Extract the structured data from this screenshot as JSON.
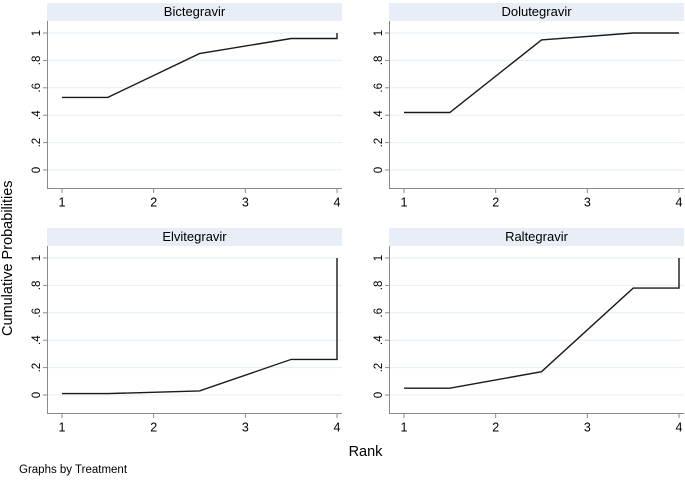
{
  "figure": {
    "y_axis_label": "Cumulative Probabilities",
    "x_axis_label": "Rank",
    "note": "Graphs by Treatment"
  },
  "style": {
    "title_band_color": "#e8eef5",
    "grid_color": "#e2eef6",
    "axis_color": "#8a8a8a",
    "line_color": "#1a1a1a",
    "text_color": "#000000"
  },
  "chart_data": {
    "type": "line",
    "layout": "2x2 small multiples (graphs by Treatment)",
    "x_axis": {
      "label": "Rank",
      "range": [
        1,
        4
      ],
      "tick_values": [
        1,
        2,
        3,
        4
      ],
      "tick_labels": [
        "1",
        "2",
        "3",
        "4"
      ]
    },
    "y_axis": {
      "label": "Cumulative Probabilities",
      "range": [
        0,
        1
      ],
      "tick_values": [
        0,
        0.2,
        0.4,
        0.6,
        0.8,
        1
      ],
      "tick_labels": [
        "0",
        ".2",
        ".4",
        ".6",
        ".8",
        "1"
      ],
      "grid": true
    },
    "panels": [
      {
        "title": "Bictegravir",
        "cumulative_probability_by_rank": {
          "rank1": 0.53,
          "rank2": 0.85,
          "rank3": 0.96,
          "rank4": 1.0
        },
        "line_vertices": [
          [
            1,
            0.53
          ],
          [
            1.5,
            0.53
          ],
          [
            2.5,
            0.85
          ],
          [
            3.5,
            0.96
          ],
          [
            4,
            0.96
          ],
          [
            4,
            1.0
          ]
        ]
      },
      {
        "title": "Dolutegravir",
        "cumulative_probability_by_rank": {
          "rank1": 0.42,
          "rank2": 0.95,
          "rank3": 1.0,
          "rank4": 1.0
        },
        "line_vertices": [
          [
            1,
            0.42
          ],
          [
            1.5,
            0.42
          ],
          [
            2.5,
            0.95
          ],
          [
            3.5,
            1.0
          ],
          [
            4,
            1.0
          ]
        ]
      },
      {
        "title": "Elvitegravir",
        "cumulative_probability_by_rank": {
          "rank1": 0.01,
          "rank2": 0.03,
          "rank3": 0.26,
          "rank4": 1.0
        },
        "line_vertices": [
          [
            1,
            0.01
          ],
          [
            1.5,
            0.01
          ],
          [
            2.5,
            0.03
          ],
          [
            3.5,
            0.26
          ],
          [
            4,
            0.26
          ],
          [
            4,
            1.0
          ]
        ]
      },
      {
        "title": "Raltegravir",
        "cumulative_probability_by_rank": {
          "rank1": 0.05,
          "rank2": 0.17,
          "rank3": 0.78,
          "rank4": 1.0
        },
        "line_vertices": [
          [
            1,
            0.05
          ],
          [
            1.5,
            0.05
          ],
          [
            2.5,
            0.17
          ],
          [
            3.5,
            0.78
          ],
          [
            4,
            0.78
          ],
          [
            4,
            1.0
          ]
        ]
      }
    ]
  }
}
